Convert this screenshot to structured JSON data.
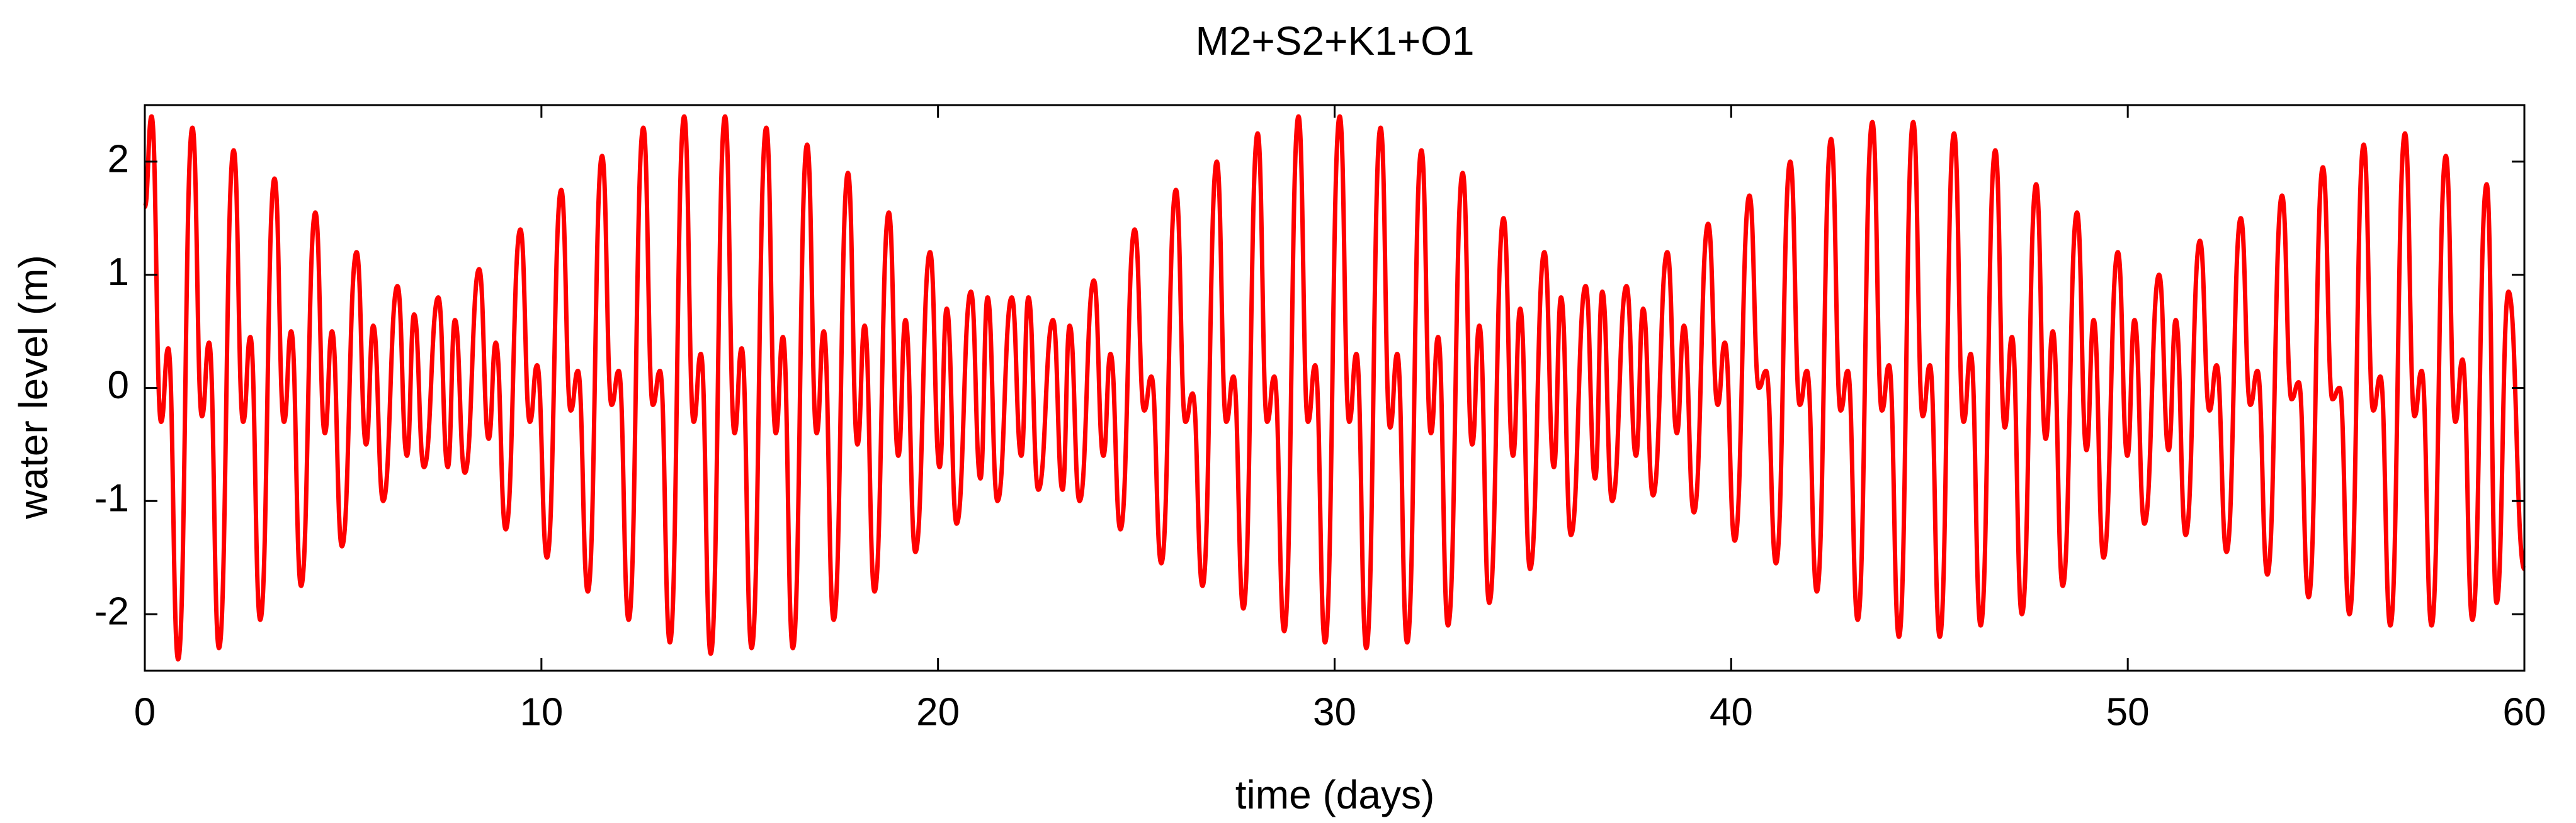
{
  "chart_data": {
    "type": "line",
    "title": "M2+S2+K1+O1",
    "xlabel": "time (days)",
    "ylabel": "water level (m)",
    "xlim": [
      0,
      60
    ],
    "ylim": [
      -2.5,
      2.5
    ],
    "xticks": [
      0,
      10,
      20,
      30,
      40,
      50,
      60
    ],
    "yticks": [
      -2,
      -1,
      0,
      1,
      2
    ],
    "color": "#ff0000",
    "x": [
      0,
      0.17,
      0.41,
      0.59,
      0.84,
      1.2,
      1.44,
      1.62,
      1.87,
      2.24,
      2.48,
      2.66,
      2.91,
      3.27,
      3.51,
      3.69,
      3.94,
      4.3,
      4.54,
      4.72,
      4.97,
      5.34,
      5.58,
      5.76,
      6.01,
      6.37,
      6.61,
      6.79,
      7.04,
      7.4,
      7.64,
      7.82,
      8.07,
      8.43,
      8.67,
      8.85,
      9.1,
      9.47,
      9.71,
      9.89,
      10.14,
      10.5,
      10.74,
      10.92,
      11.17,
      11.53,
      11.77,
      11.95,
      12.2,
      12.57,
      12.81,
      12.99,
      13.24,
      13.6,
      13.84,
      14.02,
      14.27,
      14.63,
      14.87,
      15.05,
      15.3,
      15.67,
      15.91,
      16.09,
      16.34,
      16.7,
      16.94,
      17.12,
      17.37,
      17.73,
      17.97,
      18.15,
      18.4,
      18.76,
      19.0,
      19.18,
      19.43,
      19.8,
      20.04,
      20.22,
      20.47,
      20.83,
      21.07,
      21.25,
      21.5,
      21.86,
      22.1,
      22.28,
      22.53,
      22.9,
      23.14,
      23.32,
      23.57,
      23.93,
      24.17,
      24.35,
      24.6,
      24.96,
      25.2,
      25.38,
      25.63,
      26.0,
      26.24,
      26.42,
      26.67,
      27.03,
      27.27,
      27.45,
      27.7,
      28.06,
      28.3,
      28.48,
      28.73,
      29.09,
      29.33,
      29.51,
      29.76,
      30.13,
      30.37,
      30.55,
      30.8,
      31.16,
      31.4,
      31.58,
      31.83,
      32.19,
      32.43,
      32.61,
      32.86,
      33.23,
      33.47,
      33.65,
      33.9,
      34.26,
      34.5,
      34.68,
      34.93,
      35.29,
      35.53,
      35.71,
      35.96,
      36.33,
      36.57,
      36.75,
      37.0,
      37.36,
      37.6,
      37.78,
      38.03,
      38.39,
      38.63,
      38.81,
      39.06,
      39.42,
      39.66,
      39.84,
      40.09,
      40.46,
      40.7,
      40.88,
      41.13,
      41.49,
      41.73,
      41.91,
      42.16,
      42.52,
      42.76,
      42.94,
      43.19,
      43.56,
      43.8,
      43.98,
      44.23,
      44.59,
      44.83,
      45.01,
      45.26,
      45.62,
      45.86,
      46.04,
      46.29,
      46.66,
      46.9,
      47.08,
      47.33,
      47.69,
      47.93,
      48.11,
      48.36,
      48.72,
      48.96,
      49.14,
      49.39,
      49.75,
      49.99,
      50.17,
      50.42,
      50.79,
      51.03,
      51.21,
      51.46,
      51.82,
      52.06,
      52.24,
      52.49,
      52.85,
      53.09,
      53.27,
      53.52,
      53.89,
      54.13,
      54.31,
      54.56,
      54.92,
      55.16,
      55.34,
      55.59,
      55.95,
      56.19,
      56.37,
      56.62,
      56.99,
      57.23,
      57.41,
      57.66,
      58.02,
      58.26,
      58.44,
      58.69,
      59.05,
      59.3,
      59.6,
      60
    ],
    "values": [
      1.6,
      2.4,
      -0.3,
      0.35,
      -2.4,
      2.3,
      -0.25,
      0.4,
      -2.3,
      2.1,
      -0.3,
      0.45,
      -2.05,
      1.85,
      -0.3,
      0.5,
      -1.75,
      1.55,
      -0.4,
      0.5,
      -1.4,
      1.2,
      -0.5,
      0.55,
      -1.0,
      0.9,
      -0.6,
      0.65,
      -0.7,
      0.8,
      -0.7,
      0.6,
      -0.75,
      1.05,
      -0.45,
      0.4,
      -1.25,
      1.4,
      -0.3,
      0.2,
      -1.5,
      1.75,
      -0.2,
      0.15,
      -1.8,
      2.05,
      -0.15,
      0.15,
      -2.05,
      2.3,
      -0.15,
      0.15,
      -2.25,
      2.4,
      -0.3,
      0.3,
      -2.35,
      2.4,
      -0.4,
      0.35,
      -2.3,
      2.3,
      -0.4,
      0.45,
      -2.3,
      2.15,
      -0.4,
      0.5,
      -2.05,
      1.9,
      -0.5,
      0.55,
      -1.8,
      1.55,
      -0.6,
      0.6,
      -1.45,
      1.2,
      -0.7,
      0.7,
      -1.2,
      0.85,
      -0.8,
      0.8,
      -1.0,
      0.8,
      -0.6,
      0.8,
      -0.9,
      0.6,
      -0.9,
      0.55,
      -1.0,
      0.95,
      -0.6,
      0.3,
      -1.25,
      1.4,
      -0.2,
      0.1,
      -1.55,
      1.75,
      -0.3,
      -0.05,
      -1.75,
      2.0,
      -0.3,
      0.1,
      -1.95,
      2.25,
      -0.3,
      0.1,
      -2.15,
      2.4,
      -0.3,
      0.2,
      -2.25,
      2.4,
      -0.3,
      0.3,
      -2.3,
      2.3,
      -0.35,
      0.3,
      -2.25,
      2.1,
      -0.4,
      0.45,
      -2.1,
      1.9,
      -0.5,
      0.55,
      -1.9,
      1.5,
      -0.6,
      0.7,
      -1.6,
      1.2,
      -0.7,
      0.8,
      -1.3,
      0.9,
      -0.8,
      0.85,
      -1.0,
      0.9,
      -0.6,
      0.7,
      -0.95,
      1.2,
      -0.4,
      0.55,
      -1.1,
      1.45,
      -0.15,
      0.4,
      -1.35,
      1.7,
      0.0,
      0.15,
      -1.55,
      2.0,
      -0.15,
      0.15,
      -1.8,
      2.2,
      -0.2,
      0.15,
      -2.05,
      2.35,
      -0.2,
      0.2,
      -2.2,
      2.35,
      -0.25,
      0.2,
      -2.2,
      2.25,
      -0.3,
      0.3,
      -2.1,
      2.1,
      -0.35,
      0.45,
      -2.0,
      1.8,
      -0.45,
      0.5,
      -1.75,
      1.55,
      -0.55,
      0.6,
      -1.5,
      1.2,
      -0.6,
      0.6,
      -1.2,
      1.0,
      -0.55,
      0.6,
      -1.3,
      1.3,
      -0.2,
      0.2,
      -1.45,
      1.5,
      -0.15,
      0.15,
      -1.65,
      1.7,
      -0.1,
      0.05,
      -1.85,
      1.95,
      -0.1,
      0.0,
      -2.0,
      2.15,
      -0.2,
      0.1,
      -2.1,
      2.25,
      -0.25,
      0.15,
      -2.1,
      2.05,
      -0.3,
      0.25,
      -2.05,
      1.8,
      -1.9,
      0.85,
      -1.6
    ]
  }
}
